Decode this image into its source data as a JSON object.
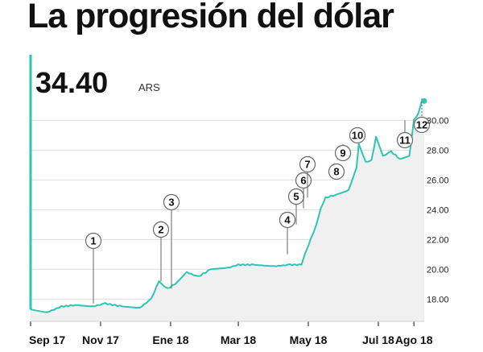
{
  "header": {
    "title": "La progresión del dólar"
  },
  "readout": {
    "value": "34.40",
    "unit": "ARS"
  },
  "colors": {
    "line": "#2ec4b6",
    "area": "#f0f0f0",
    "grid": "#dddddd",
    "marker_stroke": "#666666"
  },
  "chart_data": {
    "type": "area",
    "title": "",
    "xlabel": "",
    "ylabel": "",
    "ylim": [
      16.5,
      34.4
    ],
    "xlim": [
      "2017-09-01",
      "2018-08-10"
    ],
    "y_ticks": [
      "18.00",
      "20.00",
      "22.00",
      "24.00",
      "26.00",
      "28.00",
      "30.00"
    ],
    "x_ticks": [
      {
        "label": "Sep 17",
        "date": "2017-09-01"
      },
      {
        "label": "Nov 17",
        "date": "2017-11-01"
      },
      {
        "label": "Ene 18",
        "date": "2018-01-01"
      },
      {
        "label": "Mar 18",
        "date": "2018-03-01"
      },
      {
        "label": "May 18",
        "date": "2018-05-01"
      },
      {
        "label": "Jul 18",
        "date": "2018-07-01"
      },
      {
        "label": "Ago 18",
        "date": "2018-08-01"
      }
    ],
    "grid": true,
    "series": [
      {
        "x": [
          "2017-09-01",
          "2017-09-15",
          "2017-09-28",
          "2017-10-10",
          "2017-10-25",
          "2017-11-05",
          "2017-11-20",
          "2017-12-05",
          "2017-12-15",
          "2017-12-22",
          "2017-12-27",
          "2017-12-29",
          "2018-01-05",
          "2018-01-15",
          "2018-01-25",
          "2018-02-05",
          "2018-02-20",
          "2018-03-01",
          "2018-03-15",
          "2018-04-01",
          "2018-04-15",
          "2018-04-25",
          "2018-04-28",
          "2018-05-03",
          "2018-05-08",
          "2018-05-12",
          "2018-05-16",
          "2018-05-25",
          "2018-06-05",
          "2018-06-12",
          "2018-06-14",
          "2018-06-20",
          "2018-06-25",
          "2018-06-29",
          "2018-07-05",
          "2018-07-12",
          "2018-07-20",
          "2018-07-28",
          "2018-08-01",
          "2018-08-05",
          "2018-08-08",
          "2018-08-10"
        ],
        "values": [
          17.3,
          17.1,
          17.5,
          17.6,
          17.5,
          17.7,
          17.5,
          17.4,
          18.0,
          19.2,
          18.8,
          18.7,
          19.0,
          19.8,
          19.5,
          20.0,
          20.1,
          20.3,
          20.3,
          20.2,
          20.3,
          20.3,
          21.0,
          22.0,
          23.0,
          24.1,
          24.8,
          25.0,
          25.3,
          26.8,
          28.4,
          27.2,
          27.3,
          28.9,
          27.6,
          27.9,
          27.4,
          27.6,
          30.0,
          30.5,
          31.3,
          31.3
        ]
      }
    ],
    "markers": [
      {
        "label": "1",
        "x": "2017-11-01",
        "y": 17.7
      },
      {
        "label": "2",
        "x": "2017-12-22",
        "y": 19.2
      },
      {
        "label": "3",
        "x": "2017-12-29",
        "y": 18.7
      },
      {
        "label": "4",
        "x": "2018-04-28",
        "y": 21.0
      },
      {
        "label": "5",
        "x": "2018-05-08",
        "y": 23.0
      },
      {
        "label": "6",
        "x": "2018-05-12",
        "y": 24.1
      },
      {
        "label": "7",
        "x": "2018-05-16",
        "y": 24.8
      },
      {
        "label": "8",
        "x": "2018-06-12",
        "y": 26.8
      },
      {
        "label": "9",
        "x": "2018-06-14",
        "y": 28.4
      },
      {
        "label": "10",
        "x": "2018-06-29",
        "y": 28.9
      },
      {
        "label": "11",
        "x": "2018-08-01",
        "y": 30.0
      },
      {
        "label": "12",
        "x": "2018-08-08",
        "y": 31.3
      }
    ]
  }
}
